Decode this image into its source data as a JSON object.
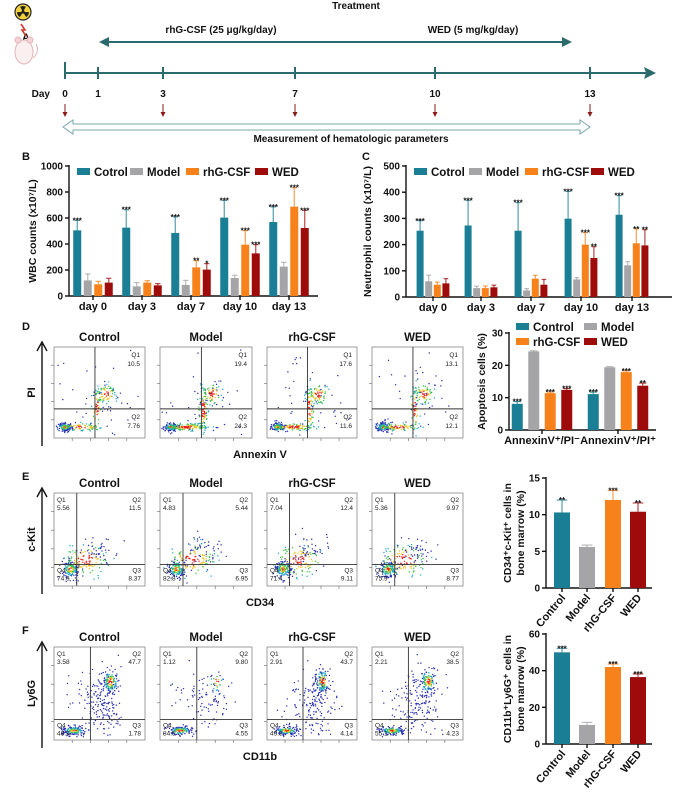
{
  "panel_labels": {
    "A": "A",
    "B": "B",
    "C": "C",
    "D": "D",
    "E": "E",
    "F": "F"
  },
  "colors": [
    "#1a7f94",
    "#a5a5a8",
    "#f7821b",
    "#9e0b0b"
  ],
  "timeline": {
    "treatment_title": "Treatment",
    "drug1": "rhG-CSF (25 μg/kg/day)",
    "drug2": "WED (5 mg/kg/day)",
    "day_label": "Day",
    "days": [
      "0",
      "1",
      "3",
      "7",
      "10",
      "13"
    ],
    "measurement_label": "Measurement of hematologic parameters",
    "axis_color": "#2b6b6e",
    "marker_color": "#8b1a1a",
    "icons": [
      "radiation-icon",
      "mouse-icon"
    ]
  },
  "flow": {
    "D": {
      "titles": [
        "Control",
        "Model",
        "rhG-CSF",
        "WED"
      ],
      "xlabel": "Annexin V",
      "ylabel": "PI",
      "plots": [
        {
          "Q1": "Q1",
          "v1": "10.5",
          "Q2": "Q2",
          "v2": "7.76"
        },
        {
          "Q1": "Q1",
          "v1": "19.4",
          "Q2": "Q2",
          "v2": "24.3"
        },
        {
          "Q1": "Q1",
          "v1": "17.6",
          "Q2": "Q2",
          "v2": "11.6"
        },
        {
          "Q1": "Q1",
          "v1": "13.1",
          "Q2": "Q2",
          "v2": "12.1"
        }
      ]
    },
    "E": {
      "titles": [
        "Control",
        "Model",
        "rhG-CSF",
        "WED"
      ],
      "xlabel": "CD34",
      "ylabel": "c-Kit",
      "plots": [
        {
          "Q1": "5.56",
          "Q2": "11.5",
          "Q3": "8.37",
          "Q4": "74.6"
        },
        {
          "Q1": "4.83",
          "Q2": "5.44",
          "Q3": "6.95",
          "Q4": "82.8"
        },
        {
          "Q1": "7.04",
          "Q2": "12.4",
          "Q3": "9.11",
          "Q4": "71.4"
        },
        {
          "Q1": "5.36",
          "Q2": "9.97",
          "Q3": "8.77",
          "Q4": "75.9"
        }
      ]
    },
    "F": {
      "titles": [
        "Control",
        "Model",
        "rhG-CSF",
        "WED"
      ],
      "xlabel": "CD11b",
      "ylabel": "Ly6G",
      "plots": [
        {
          "Q1": "3.58",
          "Q2": "47.7",
          "Q3": "1.78",
          "Q4": "46.9"
        },
        {
          "Q1": "1.12",
          "Q2": "9.80",
          "Q3": "4.55",
          "Q4": "84.5"
        },
        {
          "Q1": "2.91",
          "Q2": "43.7",
          "Q3": "4.14",
          "Q4": "49.3"
        },
        {
          "Q1": "2.21",
          "Q2": "38.5",
          "Q3": "4.23",
          "Q4": "55.1"
        }
      ]
    },
    "quadrant_names": [
      "Q1",
      "Q2",
      "Q3",
      "Q4"
    ]
  },
  "chart_data": [
    {
      "id": "B",
      "type": "bar",
      "ylabel": [
        "WBC counts (x10⁷/L)"
      ],
      "ylim": [
        0,
        1000
      ],
      "yticks": [
        0,
        200,
        400,
        600,
        800,
        1000
      ],
      "categories": [
        "day 0",
        "day 3",
        "day 7",
        "day 10",
        "day 13"
      ],
      "legend_position": "top",
      "series": [
        {
          "name": "Cotrol",
          "values": [
            505,
            526,
            485,
            603,
            569
          ],
          "errors": [
            582,
            664,
            608,
            736,
            685
          ],
          "significance": [
            "***",
            "***",
            "***",
            "***",
            "***"
          ]
        },
        {
          "name": "Model",
          "values": [
            120,
            74,
            85,
            138,
            226
          ],
          "errors": [
            170,
            103,
            120,
            159,
            259
          ],
          "significance": [
            "",
            "",
            "",
            "",
            ""
          ]
        },
        {
          "name": "rhG-CSF",
          "values": [
            90,
            103,
            220,
            395,
            687
          ],
          "errors": [
            113,
            118,
            272,
            503,
            833
          ],
          "significance": [
            "",
            "",
            "**",
            "***",
            "***"
          ]
        },
        {
          "name": "WED",
          "values": [
            103,
            82,
            203,
            328,
            523
          ],
          "errors": [
            136,
            95,
            249,
            395,
            659
          ],
          "significance": [
            "",
            "",
            "*",
            "***",
            "***"
          ]
        }
      ]
    },
    {
      "id": "C",
      "type": "bar",
      "ylabel": [
        "Neutrophil counts (x10⁷/L)"
      ],
      "ylim": [
        0,
        500
      ],
      "yticks": [
        0,
        100,
        200,
        300,
        400,
        500
      ],
      "categories": [
        "day 0",
        "day 3",
        "day 7",
        "day 10",
        "day 13"
      ],
      "legend_position": "top",
      "series": [
        {
          "name": "Cotrol",
          "values": [
            253,
            273,
            253,
            299,
            314
          ],
          "errors": [
            291,
            369,
            360,
            403,
            387
          ],
          "significance": [
            "***",
            "***",
            "***",
            "***",
            "***"
          ]
        },
        {
          "name": "Model",
          "values": [
            60,
            34,
            25,
            67,
            121
          ],
          "errors": [
            83,
            41,
            32,
            74,
            135
          ],
          "significance": [
            "",
            "",
            "",
            "",
            ""
          ]
        },
        {
          "name": "rhG-CSF",
          "values": [
            47,
            34,
            70,
            200,
            205
          ],
          "errors": [
            57,
            42,
            83,
            246,
            260
          ],
          "significance": [
            "",
            "",
            "",
            "***",
            "**"
          ]
        },
        {
          "name": "WED",
          "values": [
            52,
            37,
            47,
            149,
            197
          ],
          "errors": [
            70,
            45,
            67,
            192,
            257
          ],
          "significance": [
            "",
            "",
            "",
            "**",
            "**"
          ]
        }
      ]
    },
    {
      "id": "D",
      "type": "bar",
      "ylabel": [
        "Apoptosis cells (%)"
      ],
      "ylim": [
        0,
        30
      ],
      "yticks": [
        0,
        10,
        20,
        30
      ],
      "categories": [
        "AnnexinV⁺/PI⁻",
        "AnnexinV⁺/PI⁺"
      ],
      "legend_position": "top",
      "series": [
        {
          "name": "Control",
          "values": [
            8.1,
            11.1
          ],
          "errors": [
            8.8,
            11.7
          ],
          "significance": [
            "***",
            "***"
          ]
        },
        {
          "name": "Model",
          "values": [
            24.3,
            19.4
          ],
          "errors": [
            24.5,
            19.6
          ],
          "significance": [
            "",
            ""
          ]
        },
        {
          "name": "rhG-CSF",
          "values": [
            11.4,
            17.9
          ],
          "errors": [
            11.7,
            18.3
          ],
          "significance": [
            "***",
            "***"
          ]
        },
        {
          "name": "WED",
          "values": [
            12.4,
            13.7
          ],
          "errors": [
            12.8,
            14.5
          ],
          "significance": [
            "***",
            "**"
          ]
        }
      ]
    },
    {
      "id": "E",
      "type": "bar",
      "ylabel": [
        "CD34⁺c-Kit⁺ cells in",
        "bone marrow (%)"
      ],
      "ylim": [
        0,
        15
      ],
      "yticks": [
        0,
        5,
        10,
        15
      ],
      "categories": [
        "Control",
        "Model",
        "rhG-CSF",
        "WED"
      ],
      "series": [
        {
          "values": [
            10.3,
            5.6,
            12.0,
            10.4
          ],
          "errors": [
            12.0,
            5.85,
            13.3,
            11.6
          ],
          "significance": [
            "**",
            "",
            "***",
            "**"
          ]
        }
      ]
    },
    {
      "id": "F",
      "type": "bar",
      "ylabel": [
        "CD11b⁺Ly6G⁺ cells in",
        "bone marrow (%)"
      ],
      "ylim": [
        0,
        60
      ],
      "yticks": [
        0,
        20,
        40,
        60
      ],
      "categories": [
        "Control",
        "Model",
        "rhG-CSF",
        "WED"
      ],
      "series": [
        {
          "values": [
            50.0,
            10.4,
            42.0,
            36.5
          ],
          "errors": [
            52.2,
            11.8,
            43.6,
            38.2
          ],
          "significance": [
            "***",
            "",
            "***",
            "***"
          ]
        }
      ]
    }
  ]
}
